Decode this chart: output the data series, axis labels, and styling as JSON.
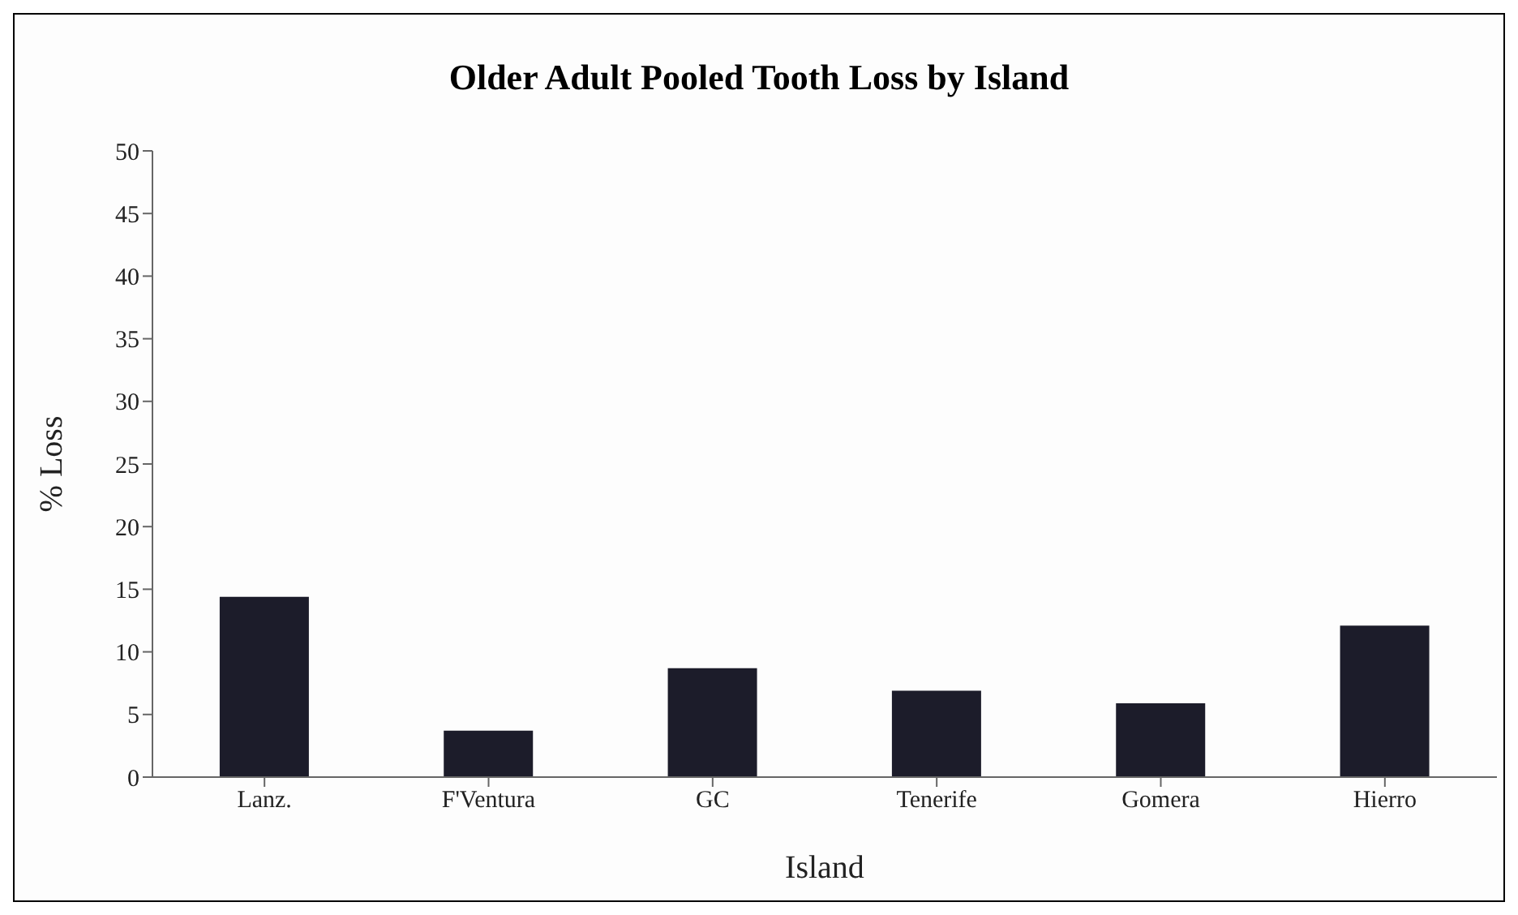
{
  "chart_data": {
    "type": "bar",
    "title": "Older Adult Pooled Tooth Loss by Island",
    "xlabel": "Island",
    "ylabel": "% Loss",
    "categories": [
      "Lanz.",
      "F'Ventura",
      "GC",
      "Tenerife",
      "Gomera",
      "Hierro"
    ],
    "values": [
      14.4,
      3.7,
      8.7,
      6.9,
      5.9,
      12.1
    ],
    "color": "#1c1c2a",
    "ylim": [
      0,
      50
    ],
    "yticks": [
      0,
      5,
      10,
      15,
      20,
      25,
      30,
      35,
      40,
      45,
      50
    ],
    "grid": false,
    "legend": false
  }
}
